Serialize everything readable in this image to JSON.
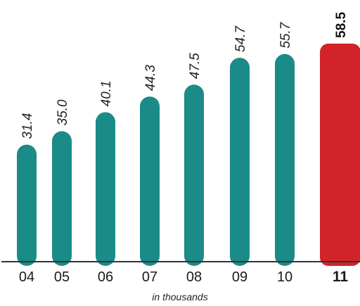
{
  "chart_data": {
    "type": "bar",
    "categories": [
      "04",
      "05",
      "06",
      "07",
      "08",
      "09",
      "10",
      "11"
    ],
    "values": [
      31.4,
      35.0,
      40.1,
      44.3,
      47.5,
      54.7,
      55.7,
      58.5
    ],
    "value_labels": [
      "31.4",
      "35.0",
      "40.1",
      "44.3",
      "47.5",
      "54.7",
      "55.7",
      "58.5"
    ],
    "highlight_index": 7,
    "ylim": [
      0,
      60
    ],
    "grid": false,
    "legend": "none",
    "unit_note": "in thousands"
  },
  "colors": {
    "bar": "#1a8b87",
    "highlight": "#d2232a",
    "axis": "#333333"
  }
}
